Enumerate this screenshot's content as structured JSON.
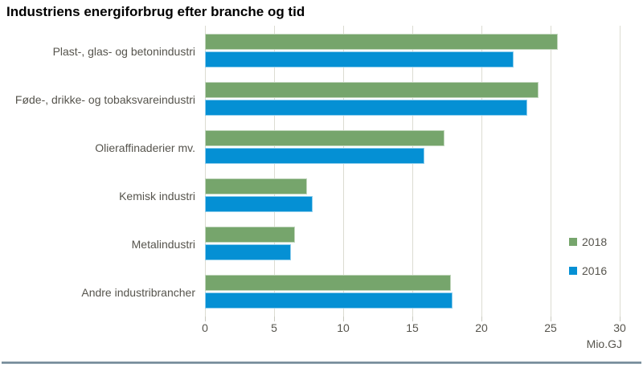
{
  "header": {
    "title": "Industriens energiforbrug efter branche og tid"
  },
  "chart_data": {
    "type": "bar",
    "orientation": "horizontal",
    "title": "Industriens energiforbrug efter branche og tid",
    "categories": [
      "Plast-, glas- og betonindustri",
      "Føde-, drikke- og tobaksvareindustri",
      "Olieraffinaderier mv.",
      "Kemisk industri",
      "Metalindustri",
      "Andre industribrancher"
    ],
    "series": [
      {
        "name": "2018",
        "color": "#76A56C",
        "values": [
          25.5,
          24.1,
          17.3,
          7.4,
          6.5,
          17.8
        ]
      },
      {
        "name": "2016",
        "color": "#0590D4",
        "values": [
          22.3,
          23.3,
          15.9,
          7.8,
          6.2,
          17.9
        ]
      }
    ],
    "xlim": [
      0,
      30
    ],
    "xticks": [
      0,
      5,
      10,
      15,
      20,
      25,
      30
    ],
    "unit_label": "Mio.GJ",
    "xlabel": "",
    "ylabel": "",
    "grid": "vertical",
    "legend_position": "right-middle"
  },
  "colors": {
    "grid": "#dcdcd2",
    "tick": "#c9c9bf",
    "text": "#56544d",
    "title_text": "#000000",
    "footer_rule": "#7d93a1",
    "background": "#ffffff"
  }
}
